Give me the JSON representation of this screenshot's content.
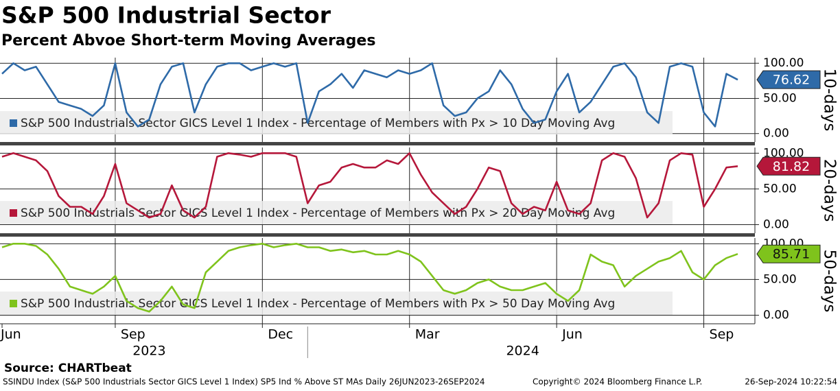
{
  "title": "S&P 500 Industrial Sector",
  "subtitle": "Percent Abvoe Short-term Moving Averages",
  "source": "Source: CHARTbeat",
  "footer": {
    "description": "SSINDU Index (S&P 500 Industrials Sector GICS Level 1 Index) SP5 Ind % Above ST MAs  Daily 26JUN2023-26SEP2024",
    "copyright": "Copyright© 2024 Bloomberg Finance L.P.",
    "timestamp": "26-Sep-2024 10:22:54"
  },
  "chart_data": [
    {
      "type": "line",
      "ylabel": "10-days",
      "ylim": [
        -12,
        108
      ],
      "yticks": [
        {
          "value": 0,
          "label": "0.00"
        },
        {
          "value": 50,
          "label": "50.00"
        },
        {
          "value": 100,
          "label": "100.00"
        }
      ],
      "series": [
        {
          "name": "S&P 500 Industrials Sector GICS Level 1 Index - Percentage of Members with Px > 10 Day Moving Avg",
          "color": "#2e6aa8",
          "values": [
            85,
            100,
            90,
            95,
            70,
            45,
            40,
            35,
            25,
            40,
            100,
            30,
            10,
            20,
            70,
            95,
            100,
            30,
            70,
            95,
            100,
            100,
            90,
            95,
            100,
            95,
            100,
            15,
            60,
            70,
            85,
            65,
            90,
            85,
            80,
            90,
            85,
            90,
            100,
            40,
            25,
            30,
            50,
            60,
            90,
            70,
            35,
            15,
            20,
            60,
            85,
            30,
            45,
            70,
            95,
            100,
            80,
            30,
            15,
            95,
            100,
            95,
            30,
            10,
            85,
            76.62
          ]
        }
      ]
    },
    {
      "type": "line",
      "ylabel": "20-days",
      "ylim": [
        -12,
        108
      ],
      "yticks": [
        {
          "value": 0,
          "label": "0.00"
        },
        {
          "value": 50,
          "label": "50.00"
        },
        {
          "value": 100,
          "label": "100.00"
        }
      ],
      "series": [
        {
          "name": "S&P 500 Industrials Sector GICS Level 1 Index - Percentage of Members with Px > 20 Day Moving Avg",
          "color": "#b5173a",
          "values": [
            95,
            100,
            95,
            90,
            75,
            40,
            25,
            25,
            15,
            40,
            85,
            30,
            20,
            10,
            15,
            55,
            20,
            10,
            25,
            95,
            100,
            98,
            95,
            100,
            100,
            100,
            95,
            30,
            55,
            60,
            80,
            85,
            80,
            80,
            90,
            85,
            100,
            70,
            45,
            30,
            15,
            25,
            50,
            80,
            75,
            30,
            15,
            25,
            20,
            60,
            20,
            15,
            30,
            90,
            100,
            95,
            65,
            10,
            30,
            90,
            100,
            98,
            25,
            50,
            80,
            81.82
          ]
        }
      ]
    },
    {
      "type": "line",
      "ylabel": "50-days",
      "ylim": [
        -12,
        108
      ],
      "yticks": [
        {
          "value": 0,
          "label": "0.00"
        },
        {
          "value": 50,
          "label": "50.00"
        },
        {
          "value": 100,
          "label": "100.00"
        }
      ],
      "series": [
        {
          "name": "S&P 500 Industrials Sector GICS Level 1 Index - Percentage of Members with Px > 50 Day Moving Avg",
          "color": "#7fc31c",
          "values": [
            95,
            100,
            100,
            97,
            85,
            65,
            40,
            35,
            30,
            40,
            55,
            20,
            10,
            5,
            20,
            40,
            15,
            10,
            60,
            75,
            90,
            95,
            98,
            100,
            95,
            98,
            100,
            95,
            95,
            90,
            92,
            88,
            90,
            85,
            85,
            90,
            85,
            75,
            55,
            35,
            30,
            35,
            45,
            50,
            40,
            35,
            35,
            40,
            45,
            30,
            20,
            35,
            85,
            75,
            70,
            40,
            55,
            65,
            75,
            80,
            90,
            60,
            50,
            70,
            80,
            85.71
          ]
        }
      ],
      "x": [
        "2023-06",
        "2023-07",
        "2023-07",
        "2023-07",
        "2023-07",
        "2023-07",
        "2023-08",
        "2023-08",
        "2023-08",
        "2023-08",
        "2023-09",
        "2023-09",
        "2023-09",
        "2023-09",
        "2023-10",
        "2023-10",
        "2023-10",
        "2023-10",
        "2023-10",
        "2023-11",
        "2023-11",
        "2023-11",
        "2023-11",
        "2023-12",
        "2023-12",
        "2023-12",
        "2023-12",
        "2024-01",
        "2024-01",
        "2024-01",
        "2024-01",
        "2024-01",
        "2024-02",
        "2024-02",
        "2024-02",
        "2024-02",
        "2024-03",
        "2024-03",
        "2024-03",
        "2024-03",
        "2024-04",
        "2024-04",
        "2024-04",
        "2024-04",
        "2024-04",
        "2024-05",
        "2024-05",
        "2024-05",
        "2024-05",
        "2024-06",
        "2024-06",
        "2024-06",
        "2024-06",
        "2024-07",
        "2024-07",
        "2024-07",
        "2024-07",
        "2024-07",
        "2024-08",
        "2024-08",
        "2024-08",
        "2024-08",
        "2024-09",
        "2024-09",
        "2024-09",
        "2024-09"
      ],
      "xticks": [
        {
          "value": "2023-06",
          "label": "Jun"
        },
        {
          "value": "2023-09",
          "label": "Sep"
        },
        {
          "value": "2023-12",
          "label": "Dec"
        },
        {
          "value": "2024-03",
          "label": "Mar"
        },
        {
          "value": "2024-06",
          "label": "Jun"
        },
        {
          "value": "2024-09",
          "label": "Sep"
        }
      ],
      "years": [
        "2023",
        "2024"
      ]
    }
  ]
}
